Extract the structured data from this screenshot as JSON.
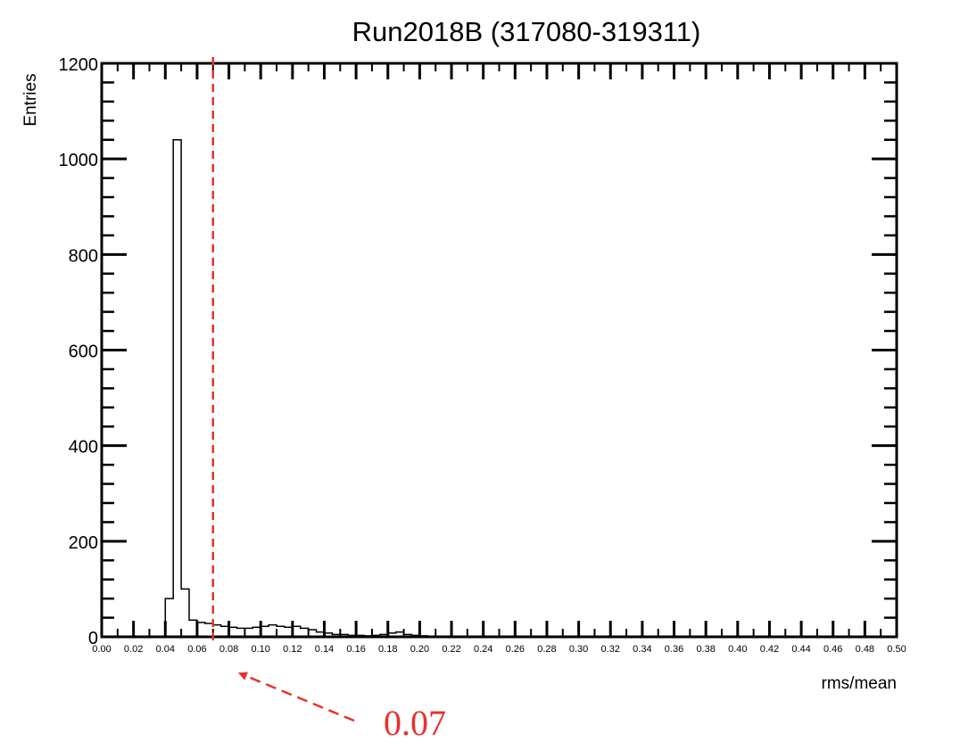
{
  "chart_data": {
    "type": "bar",
    "title": "Run2018B (317080-319311)",
    "xlabel": "rms/mean",
    "ylabel": "Entries",
    "xlim": [
      0,
      0.5
    ],
    "ylim": [
      0,
      1200
    ],
    "x_ticks": [
      "0.00",
      "0.02",
      "0.04",
      "0.06",
      "0.08",
      "0.10",
      "0.12",
      "0.14",
      "0.16",
      "0.18",
      "0.20",
      "0.22",
      "0.24",
      "0.26",
      "0.28",
      "0.30",
      "0.32",
      "0.34",
      "0.36",
      "0.38",
      "0.40",
      "0.42",
      "0.44",
      "0.46",
      "0.48",
      "0.50"
    ],
    "y_ticks": [
      "0",
      "200",
      "400",
      "600",
      "800",
      "1000",
      "1200"
    ],
    "grid": false,
    "histogram": {
      "bin_width": 0.005,
      "bin_edges_start": 0.0,
      "values": [
        0,
        0,
        0,
        0,
        0,
        0,
        0,
        0,
        80,
        1040,
        100,
        35,
        30,
        28,
        25,
        22,
        20,
        18,
        18,
        20,
        22,
        25,
        22,
        20,
        22,
        18,
        15,
        10,
        8,
        5,
        5,
        3,
        3,
        2,
        3,
        5,
        8,
        10,
        5,
        3,
        2,
        1,
        0,
        0,
        0,
        0,
        0,
        0,
        0,
        0,
        0,
        0,
        0,
        0,
        0,
        0,
        0,
        0,
        0,
        0,
        0,
        0,
        0,
        0,
        0,
        0,
        0,
        0,
        0,
        0,
        0,
        0,
        0,
        0,
        0,
        0,
        0,
        0,
        0,
        0,
        0,
        0,
        0,
        0,
        0,
        0,
        0,
        0,
        0,
        0,
        0,
        0,
        0,
        0,
        0,
        0,
        0,
        0,
        0,
        0
      ]
    },
    "cut_line": {
      "x": 0.07,
      "color": "#e8312c",
      "style": "dashed"
    },
    "annotation": {
      "text": "0.07",
      "points_to_x": 0.07,
      "color": "#e8312c"
    }
  }
}
